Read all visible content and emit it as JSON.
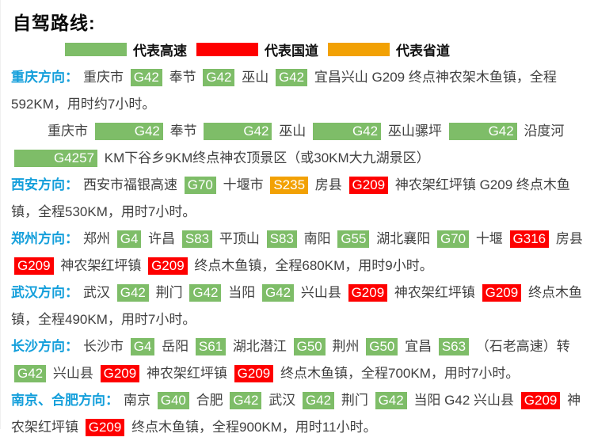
{
  "page": {
    "title": "自驾路线:"
  },
  "colors": {
    "green": "#7EBD68",
    "red": "#FE0000",
    "orange": "#F2A104",
    "header_blue": "#149FDB",
    "body_text": "#404040",
    "badge_text": "#FFFFFF"
  },
  "legend": {
    "items": [
      {
        "type": "green",
        "label": "代表高速"
      },
      {
        "type": "red",
        "label": "代表国道"
      },
      {
        "type": "orange",
        "label": "代表省道"
      }
    ]
  },
  "sections": [
    {
      "header": "重庆方向：",
      "paragraphs": [
        {
          "indent": false,
          "runs": [
            {
              "type": "text",
              "text": "重庆市"
            },
            {
              "type": "green",
              "text": "G42"
            },
            {
              "type": "text",
              "text": "奉节"
            },
            {
              "type": "green",
              "text": "G42"
            },
            {
              "type": "text",
              "text": "巫山"
            },
            {
              "type": "green",
              "text": "G42"
            },
            {
              "type": "text",
              "text": "宜昌兴山 G209 终点神农架木鱼镇，全程592KM，用时约7小时。"
            }
          ]
        },
        {
          "indent": true,
          "runs": [
            {
              "type": "text",
              "text": "重庆市"
            },
            {
              "type": "green",
              "text": "G42"
            },
            {
              "type": "text",
              "text": "奉节"
            },
            {
              "type": "green",
              "text": "G42"
            },
            {
              "type": "text",
              "text": "巫山"
            },
            {
              "type": "green",
              "text": "G42"
            },
            {
              "type": "text",
              "text": "巫山骡坪"
            },
            {
              "type": "green",
              "text": "G42"
            },
            {
              "type": "text",
              "text": "沿度河"
            },
            {
              "type": "green",
              "text": "G4257"
            },
            {
              "type": "text",
              "text": "KM下谷乡9KM终点神农顶景区（或30KM大九湖景区）"
            }
          ]
        }
      ]
    },
    {
      "header": "西安方向：",
      "paragraphs": [
        {
          "indent": false,
          "runs": [
            {
              "type": "text",
              "text": "西安市福银高速"
            },
            {
              "type": "green",
              "text": "G70"
            },
            {
              "type": "text",
              "text": "十堰市"
            },
            {
              "type": "orange",
              "text": "S235"
            },
            {
              "type": "text",
              "text": "房县"
            },
            {
              "type": "red",
              "text": "G209"
            },
            {
              "type": "text",
              "text": "神农架红坪镇 G209 终点木鱼镇，全程530KM，用时7小时。"
            }
          ]
        }
      ]
    },
    {
      "header": "郑州方向：",
      "paragraphs": [
        {
          "indent": false,
          "runs": [
            {
              "type": "text",
              "text": "郑州"
            },
            {
              "type": "green",
              "text": "G4"
            },
            {
              "type": "text",
              "text": "许昌"
            },
            {
              "type": "green",
              "text": "S83"
            },
            {
              "type": "text",
              "text": "平顶山"
            },
            {
              "type": "green",
              "text": "S83"
            },
            {
              "type": "text",
              "text": "南阳"
            },
            {
              "type": "green",
              "text": "G55"
            },
            {
              "type": "text",
              "text": "湖北襄阳"
            },
            {
              "type": "green",
              "text": "G70"
            },
            {
              "type": "text",
              "text": "十堰"
            },
            {
              "type": "red",
              "text": "G316"
            },
            {
              "type": "text",
              "text": "房县"
            },
            {
              "type": "red",
              "text": "G209"
            },
            {
              "type": "text",
              "text": "神农架红坪镇"
            },
            {
              "type": "red",
              "text": "G209"
            },
            {
              "type": "text",
              "text": "终点木鱼镇，全程680KM，用时9小时。"
            }
          ]
        }
      ]
    },
    {
      "header": "武汉方向：",
      "paragraphs": [
        {
          "indent": false,
          "runs": [
            {
              "type": "text",
              "text": "武汉"
            },
            {
              "type": "green",
              "text": "G42"
            },
            {
              "type": "text",
              "text": "荆门"
            },
            {
              "type": "green",
              "text": "G42"
            },
            {
              "type": "text",
              "text": "当阳"
            },
            {
              "type": "green",
              "text": "G42"
            },
            {
              "type": "text",
              "text": "兴山县"
            },
            {
              "type": "red",
              "text": "G209"
            },
            {
              "type": "text",
              "text": "神农架红坪镇"
            },
            {
              "type": "red",
              "text": "G209"
            },
            {
              "type": "text",
              "text": "终点木鱼镇，全程490KM，用时7小时。"
            }
          ]
        }
      ]
    },
    {
      "header": "长沙方向：",
      "paragraphs": [
        {
          "indent": false,
          "runs": [
            {
              "type": "text",
              "text": "长沙市"
            },
            {
              "type": "green",
              "text": "G4"
            },
            {
              "type": "text",
              "text": "岳阳"
            },
            {
              "type": "green",
              "text": "S61"
            },
            {
              "type": "text",
              "text": "湖北潜江"
            },
            {
              "type": "green",
              "text": "G50"
            },
            {
              "type": "text",
              "text": "荆州"
            },
            {
              "type": "green",
              "text": "G50"
            },
            {
              "type": "text",
              "text": "宜昌"
            },
            {
              "type": "green",
              "text": "S63"
            },
            {
              "type": "text",
              "text": "（石老高速）转"
            },
            {
              "type": "green",
              "text": "G42"
            },
            {
              "type": "text",
              "text": "兴山县"
            },
            {
              "type": "red",
              "text": "G209"
            },
            {
              "type": "text",
              "text": "神农架红坪镇"
            },
            {
              "type": "red",
              "text": "G209"
            },
            {
              "type": "text",
              "text": "终点木鱼镇，全程700KM，用时7小时。"
            }
          ]
        }
      ]
    },
    {
      "header": "南京、合肥方向：",
      "paragraphs": [
        {
          "indent": false,
          "runs": [
            {
              "type": "text",
              "text": "南京"
            },
            {
              "type": "green",
              "text": "G40"
            },
            {
              "type": "text",
              "text": "合肥"
            },
            {
              "type": "green",
              "text": "G42"
            },
            {
              "type": "text",
              "text": "武汉"
            },
            {
              "type": "green",
              "text": "G42"
            },
            {
              "type": "text",
              "text": "荆门"
            },
            {
              "type": "green",
              "text": "G42"
            },
            {
              "type": "text",
              "text": "当阳 G42 兴山县"
            },
            {
              "type": "red",
              "text": "G209"
            },
            {
              "type": "text",
              "text": "神农架红坪镇"
            },
            {
              "type": "red",
              "text": "G209"
            },
            {
              "type": "text",
              "text": "终点木鱼镇，全程900KM，用时11小时。"
            }
          ]
        }
      ]
    }
  ]
}
